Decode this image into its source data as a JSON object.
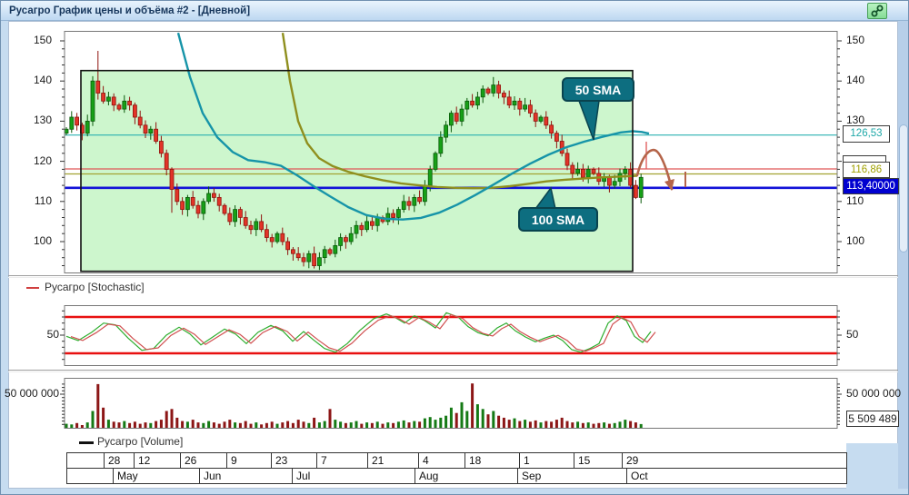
{
  "window": {
    "title": "Русагро График цены и объёма #2 - [Дневной]"
  },
  "annotations": {
    "sma50": "50 SMA",
    "sma100": "100 SMA"
  },
  "legends": {
    "stochastic": "Русагро [Stochastic]",
    "volume": "Русагро [Volume]"
  },
  "axis": {
    "price_ticks": [
      150,
      140,
      130,
      120,
      110,
      100
    ],
    "stoch_tick": "50",
    "volume_tick": "50 000 000",
    "volume_last": "5 509 489",
    "price_labels": [
      {
        "text": "126,53",
        "color": "#1fa8a8",
        "bg": "#ffffff",
        "top": 137,
        "width": 52,
        "height": 19
      },
      {
        "text": "",
        "color": "#333333",
        "bg": "#ffffff",
        "top": 170,
        "width": 48,
        "height": 17
      },
      {
        "text": "116,86",
        "color": "#a0a000",
        "bg": "#ffffff",
        "top": 177,
        "width": 52,
        "height": 18
      },
      {
        "text": "113,40000",
        "color": "#ffffff",
        "bg": "#0000d0",
        "top": 195,
        "width": 62,
        "height": 18
      }
    ]
  },
  "date_axis": {
    "day_bounds": [
      72,
      113,
      146,
      197,
      248,
      297,
      347,
      403,
      459,
      510,
      570,
      630,
      683,
      930
    ],
    "day_labels": [
      "",
      "28",
      "12",
      "26",
      "9",
      "23",
      "7",
      "21",
      "4",
      "18",
      "1",
      "15",
      "29"
    ],
    "month_bounds": [
      72,
      123,
      218,
      320,
      455,
      568,
      688,
      930
    ],
    "month_labels": [
      "",
      "May",
      "Jun",
      "Jul",
      "Aug",
      "Sep",
      "Oct"
    ]
  },
  "chart_data": [
    {
      "type": "candlestick",
      "title": "Русагро daily price",
      "ylim": [
        90,
        152
      ],
      "y_ticks": [
        100,
        110,
        120,
        130,
        140,
        150
      ],
      "first_open": 127,
      "closes": [
        128,
        131,
        129,
        127,
        130,
        140,
        137,
        135,
        136,
        134,
        133,
        135,
        134,
        131,
        129,
        127,
        128,
        125,
        122,
        118,
        113,
        110,
        108,
        111,
        109,
        107,
        110,
        112,
        111,
        109,
        107,
        105,
        108,
        106,
        104,
        103,
        105,
        103,
        101,
        100,
        102,
        100,
        98,
        97,
        96,
        95,
        97,
        94,
        96,
        98,
        97,
        99,
        101,
        100,
        102,
        104,
        103,
        105,
        104,
        106,
        105,
        107,
        106,
        108,
        110,
        109,
        111,
        110,
        114,
        118,
        122,
        126,
        129,
        132,
        130,
        133,
        135,
        134,
        136,
        138,
        137,
        139,
        137,
        136,
        134,
        135,
        133,
        134,
        132,
        130,
        131,
        129,
        127,
        125,
        122,
        119,
        117,
        118,
        116,
        118,
        117,
        115,
        116,
        114,
        115,
        117,
        118,
        114,
        111,
        116
      ],
      "wick_overrides": {
        "6": {
          "high": 147.5
        },
        "20": {
          "low": 107.2
        },
        "47": {
          "low": 93.3
        },
        "81": {
          "high": 141.0
        },
        "108": {
          "low": 110.6
        }
      },
      "hlines": [
        {
          "label": "126,53",
          "price": 126.53,
          "color": "#2ab0b0",
          "width": 1.2
        },
        {
          "label": "",
          "price": 118.1,
          "color": "#e05858",
          "width": 1.2
        },
        {
          "label": "116,86",
          "price": 116.86,
          "color": "#a2a232",
          "width": 1.2
        },
        {
          "label": "113,40000",
          "price": 113.4,
          "color": "#1212d8",
          "width": 2.6
        }
      ],
      "highlight_box": {
        "x1": 88,
        "x2": 695,
        "price_top": 142.6,
        "price_bottom": 92.6,
        "fill": "#cdf6cd"
      },
      "sma50": [
        [
          195,
          152
        ],
        [
          208,
          141
        ],
        [
          222,
          132
        ],
        [
          238,
          126
        ],
        [
          255,
          122.3
        ],
        [
          272,
          120.3
        ],
        [
          290,
          119.8
        ],
        [
          308,
          118.9
        ],
        [
          326,
          116.5
        ],
        [
          344,
          113.8
        ],
        [
          362,
          111.3
        ],
        [
          382,
          108.6
        ],
        [
          402,
          106.6
        ],
        [
          422,
          105.7
        ],
        [
          442,
          105.5
        ],
        [
          462,
          105.9
        ],
        [
          482,
          107.2
        ],
        [
          502,
          109.2
        ],
        [
          522,
          111.6
        ],
        [
          542,
          114.2
        ],
        [
          562,
          116.9
        ],
        [
          582,
          119.4
        ],
        [
          602,
          121.6
        ],
        [
          622,
          123.5
        ],
        [
          642,
          124.9
        ],
        [
          662,
          126.1
        ],
        [
          682,
          127.2
        ],
        [
          695,
          127.5
        ],
        [
          705,
          127.3
        ],
        [
          713,
          126.9
        ]
      ],
      "sma100": [
        [
          310,
          152
        ],
        [
          318,
          140
        ],
        [
          327,
          130
        ],
        [
          337,
          124.5
        ],
        [
          350,
          120.8
        ],
        [
          365,
          118.8
        ],
        [
          382,
          117.4
        ],
        [
          400,
          116.3
        ],
        [
          420,
          115.3
        ],
        [
          440,
          114.5
        ],
        [
          460,
          114
        ],
        [
          480,
          113.6
        ],
        [
          500,
          113.4
        ],
        [
          520,
          113.3
        ],
        [
          540,
          113.4
        ],
        [
          560,
          113.8
        ],
        [
          580,
          114.4
        ],
        [
          600,
          115
        ],
        [
          620,
          115.4
        ],
        [
          640,
          115.7
        ],
        [
          660,
          116
        ],
        [
          680,
          116.2
        ],
        [
          700,
          116.4
        ]
      ]
    },
    {
      "type": "line",
      "name": "Stochastic",
      "ylim": [
        0,
        100
      ],
      "bands": [
        80,
        20
      ],
      "colors": {
        "k": "#2fae2f",
        "d": "#d05050",
        "band": "#e81010"
      },
      "points": [
        [
          72,
          48
        ],
        [
          85,
          41
        ],
        [
          100,
          55
        ],
        [
          113,
          70
        ],
        [
          126,
          67
        ],
        [
          140,
          45
        ],
        [
          155,
          25
        ],
        [
          168,
          28
        ],
        [
          182,
          50
        ],
        [
          196,
          63
        ],
        [
          208,
          52
        ],
        [
          220,
          34
        ],
        [
          232,
          46
        ],
        [
          246,
          60
        ],
        [
          258,
          52
        ],
        [
          270,
          36
        ],
        [
          283,
          55
        ],
        [
          297,
          66
        ],
        [
          310,
          57
        ],
        [
          321,
          40
        ],
        [
          333,
          56
        ],
        [
          344,
          42
        ],
        [
          356,
          28
        ],
        [
          368,
          22
        ],
        [
          381,
          36
        ],
        [
          395,
          58
        ],
        [
          410,
          77
        ],
        [
          424,
          85
        ],
        [
          434,
          79
        ],
        [
          444,
          70
        ],
        [
          455,
          82
        ],
        [
          466,
          74
        ],
        [
          478,
          62
        ],
        [
          490,
          87
        ],
        [
          503,
          80
        ],
        [
          514,
          64
        ],
        [
          525,
          54
        ],
        [
          536,
          49
        ],
        [
          546,
          62
        ],
        [
          556,
          70
        ],
        [
          566,
          57
        ],
        [
          577,
          47
        ],
        [
          588,
          39
        ],
        [
          598,
          45
        ],
        [
          608,
          50
        ],
        [
          618,
          41
        ],
        [
          628,
          26
        ],
        [
          638,
          22
        ],
        [
          648,
          28
        ],
        [
          658,
          36
        ],
        [
          668,
          70
        ],
        [
          678,
          82
        ],
        [
          688,
          74
        ],
        [
          697,
          48
        ],
        [
          706,
          38
        ],
        [
          715,
          56
        ]
      ]
    },
    {
      "type": "bar",
      "name": "Volume",
      "unit": "millions",
      "ymax_label": 50,
      "values": [
        6,
        5,
        7,
        4,
        8,
        25,
        65,
        30,
        12,
        9,
        8,
        10,
        7,
        9,
        6,
        8,
        7,
        10,
        12,
        25,
        28,
        15,
        10,
        9,
        12,
        8,
        7,
        10,
        8,
        6,
        9,
        12,
        8,
        7,
        10,
        6,
        8,
        5,
        7,
        9,
        6,
        8,
        10,
        7,
        12,
        9,
        7,
        15,
        8,
        10,
        28,
        12,
        9,
        7,
        8,
        10,
        6,
        8,
        7,
        9,
        6,
        8,
        7,
        9,
        11,
        8,
        10,
        9,
        14,
        16,
        12,
        15,
        18,
        30,
        22,
        38,
        25,
        66,
        35,
        28,
        20,
        25,
        18,
        15,
        12,
        14,
        10,
        12,
        9,
        11,
        8,
        10,
        9,
        12,
        15,
        10,
        8,
        9,
        7,
        8,
        6,
        7,
        8,
        6,
        7,
        9,
        12,
        10,
        8,
        5.5
      ]
    }
  ]
}
